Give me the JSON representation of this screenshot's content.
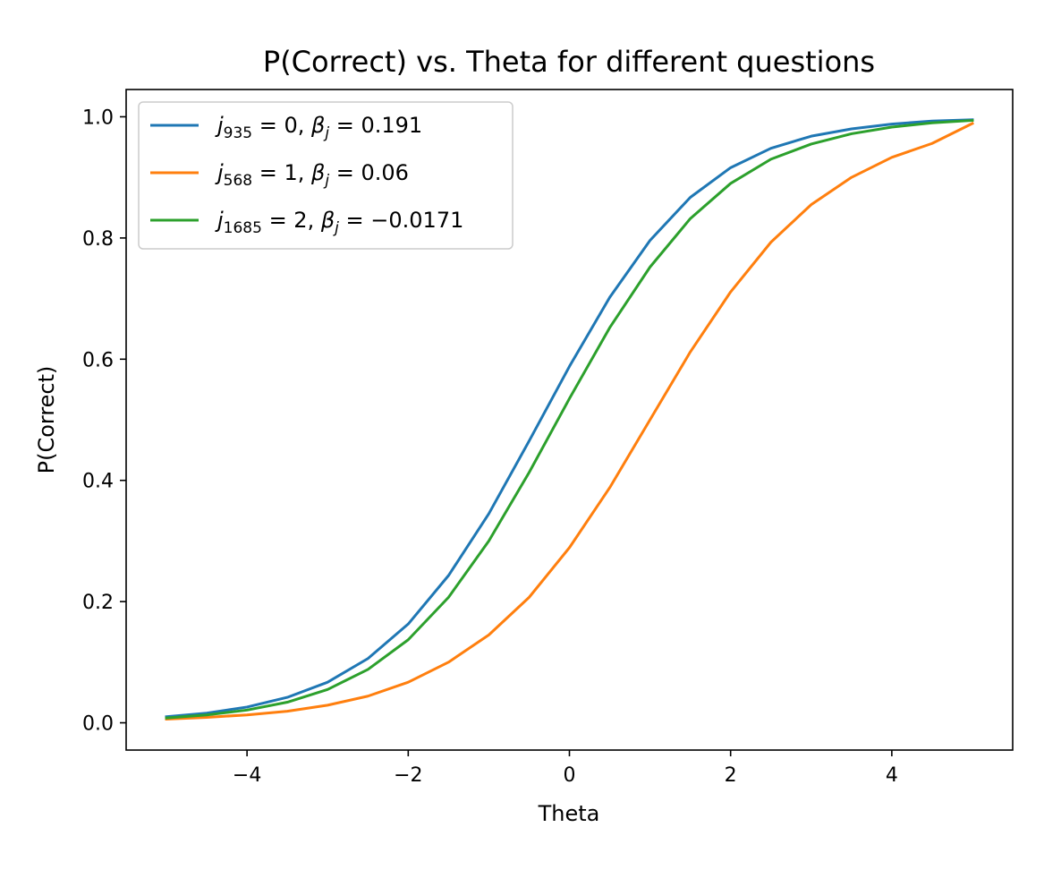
{
  "chart_data": {
    "type": "line",
    "title": "P(Correct) vs. Theta for different questions",
    "xlabel": "Theta",
    "ylabel": "P(Correct)",
    "xlim": [
      -5.5,
      5.5
    ],
    "ylim": [
      -0.045,
      1.045
    ],
    "xticks": [
      -4,
      -2,
      0,
      2,
      4
    ],
    "xtick_labels": [
      "−4",
      "−2",
      "0",
      "2",
      "4"
    ],
    "yticks": [
      0.0,
      0.2,
      0.4,
      0.6,
      0.8,
      1.0
    ],
    "ytick_labels": [
      "0.0",
      "0.2",
      "0.4",
      "0.6",
      "0.8",
      "1.0"
    ],
    "grid": false,
    "legend_position": "upper-left",
    "x": [
      -5,
      -4.5,
      -4,
      -3.5,
      -3,
      -2.5,
      -2,
      -1.5,
      -1,
      -0.5,
      0,
      0.5,
      1,
      1.5,
      2,
      2.5,
      3,
      3.5,
      4,
      4.5,
      5
    ],
    "series": [
      {
        "name": "j935 = 0, βj = 0.191",
        "legend": {
          "var": "j",
          "sub": "935",
          "eq1": " = 0, ",
          "beta": "β",
          "beta_sub": "j",
          "eq2": " = 0.191"
        },
        "color": "#1f77b4",
        "values": [
          0.01,
          0.016,
          0.026,
          0.042,
          0.067,
          0.106,
          0.163,
          0.243,
          0.345,
          0.465,
          0.588,
          0.702,
          0.796,
          0.867,
          0.916,
          0.948,
          0.968,
          0.98,
          0.988,
          0.993,
          0.995
        ]
      },
      {
        "name": "j568 = 1, βj = 0.06",
        "legend": {
          "var": "j",
          "sub": "568",
          "eq1": " = 1, ",
          "beta": "β",
          "beta_sub": "j",
          "eq2": " = 0.06"
        },
        "color": "#ff7f0e",
        "values": [
          0.006,
          0.009,
          0.013,
          0.019,
          0.029,
          0.044,
          0.067,
          0.1,
          0.145,
          0.207,
          0.289,
          0.388,
          0.5,
          0.612,
          0.711,
          0.793,
          0.855,
          0.9,
          0.933,
          0.956,
          0.989
        ]
      },
      {
        "name": "j1685 = 2, βj = −0.0171",
        "legend": {
          "var": "j",
          "sub": "1685",
          "eq1": " = 2, ",
          "beta": "β",
          "beta_sub": "j",
          "eq2": " = −0.0171"
        },
        "color": "#2ca02c",
        "values": [
          0.008,
          0.013,
          0.021,
          0.034,
          0.055,
          0.088,
          0.137,
          0.207,
          0.3,
          0.413,
          0.535,
          0.652,
          0.752,
          0.832,
          0.89,
          0.93,
          0.955,
          0.972,
          0.983,
          0.99,
          0.994
        ]
      }
    ]
  }
}
